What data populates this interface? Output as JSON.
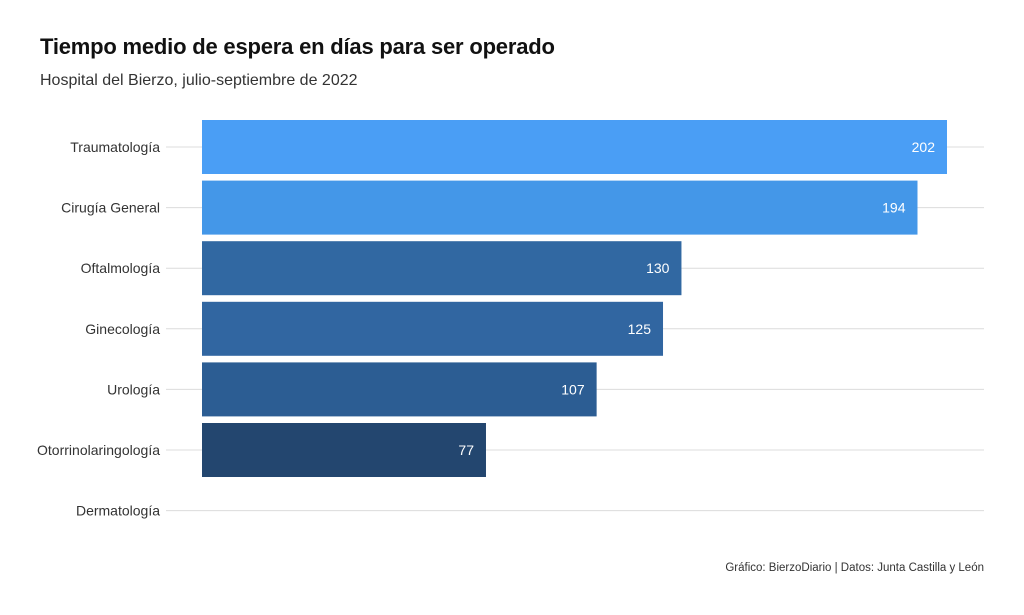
{
  "header": {
    "title": "Tiempo medio de espera en días para ser operado",
    "subtitle": "Hospital del Bierzo, julio-septiembre de 2022"
  },
  "footer": {
    "credit": "Gráfico: BierzoDiario | Datos: Junta Castilla y León"
  },
  "chart_data": {
    "type": "bar",
    "orientation": "horizontal",
    "categories": [
      "Traumatología",
      "Cirugía General",
      "Oftalmología",
      "Ginecología",
      "Urología",
      "Otorrinolaringología",
      "Dermatología"
    ],
    "values": [
      202,
      194,
      130,
      125,
      107,
      77,
      0
    ],
    "data_labels": [
      "202",
      "194",
      "130",
      "125",
      "107",
      "77",
      ""
    ],
    "colors": [
      "#4a9ef5",
      "#4497e8",
      "#3168a2",
      "#3166a1",
      "#2c5d93",
      "#23466f",
      "#23466f"
    ],
    "xlim": [
      0,
      202
    ],
    "grid": true
  }
}
